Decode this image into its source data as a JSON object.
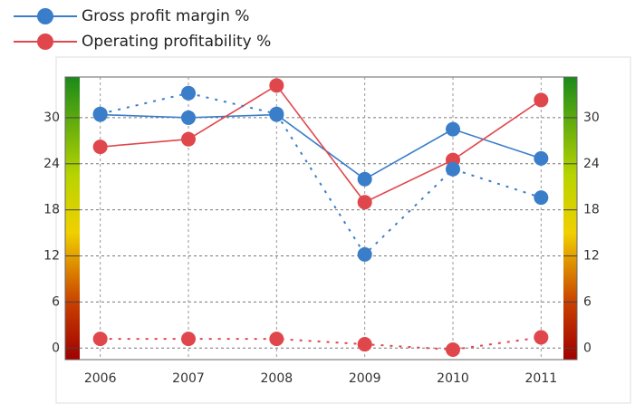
{
  "chart_data": {
    "type": "line",
    "categories": [
      "2006",
      "2007",
      "2008",
      "2009",
      "2010",
      "2011"
    ],
    "series": [
      {
        "name": "Gross profit margin %",
        "color": "#3a7dc9",
        "values": [
          30.4,
          30.0,
          30.4,
          22.0,
          28.5,
          24.7
        ]
      },
      {
        "name": "Operating profitability %",
        "color": "#e0474c",
        "values": [
          26.2,
          27.2,
          34.2,
          19.0,
          24.5,
          32.3
        ]
      },
      {
        "color": "#3a7dc9",
        "dashed": true,
        "values": [
          30.5,
          33.2,
          30.5,
          12.2,
          23.3,
          19.6
        ]
      },
      {
        "color": "#e0474c",
        "dashed": true,
        "values": [
          1.2,
          1.2,
          1.2,
          0.5,
          -0.2,
          1.4
        ]
      }
    ],
    "ylim": [
      -1.5,
      35.3
    ],
    "yticks": [
      0,
      6,
      12,
      18,
      24,
      30
    ],
    "y2lim": [
      -1.5,
      35.3
    ],
    "y2ticks": [
      0,
      6,
      12,
      18,
      24,
      30
    ],
    "grid": true
  }
}
